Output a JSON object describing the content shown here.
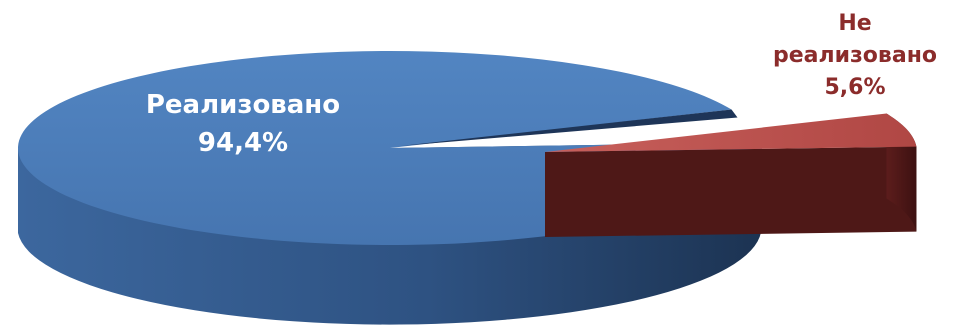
{
  "chart_data": {
    "type": "pie",
    "style": "3d-exploded",
    "slices": [
      {
        "label": "Реализовано",
        "value": 94.4,
        "display_value": "94,4%",
        "color": "#4a7bb7",
        "side_color": "#2a4a75",
        "label_color": "#ffffff"
      },
      {
        "label_lines": [
          "Не",
          "реализовано"
        ],
        "value": 5.6,
        "display_value": "5,6%",
        "color": "#c0504d",
        "side_color": "#5c1d1c",
        "label_color": "#8b2c2b",
        "exploded": true
      }
    ]
  }
}
